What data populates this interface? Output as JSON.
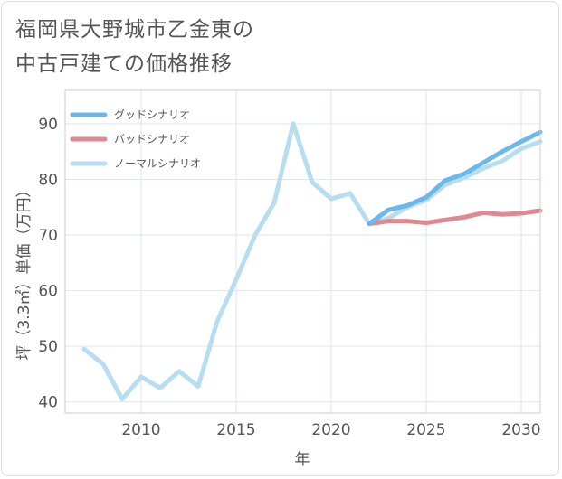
{
  "chart_data": {
    "type": "line",
    "title_lines": [
      "福岡県大野城市乙金東の",
      "中古戸建ての価格推移"
    ],
    "xlabel": "年",
    "ylabel": "坪（3.3㎡）単価（万円）",
    "xlim": [
      2006,
      2031
    ],
    "ylim": [
      38,
      96
    ],
    "xticks": [
      2010,
      2015,
      2020,
      2025,
      2030
    ],
    "yticks": [
      40,
      50,
      60,
      70,
      80,
      90
    ],
    "grid": true,
    "legend_position": "top-left",
    "series": [
      {
        "name": "グッドシナリオ",
        "color": "#6bb8ec",
        "x": [
          2022,
          2023,
          2024,
          2025,
          2026,
          2027,
          2028,
          2029,
          2030,
          2031
        ],
        "values": [
          72.0,
          74.5,
          75.3,
          76.8,
          79.8,
          81.0,
          83.0,
          85.0,
          86.8,
          88.5
        ]
      },
      {
        "name": "バッドシナリオ",
        "color": "#de8a92",
        "x": [
          2022,
          2023,
          2024,
          2025,
          2026,
          2027,
          2028,
          2029,
          2030,
          2031
        ],
        "values": [
          72.0,
          72.5,
          72.5,
          72.2,
          72.7,
          73.2,
          74.0,
          73.7,
          73.9,
          74.4
        ]
      },
      {
        "name": "ノーマルシナリオ",
        "color": "#b7ddf0",
        "x": [
          2007,
          2008,
          2009,
          2010,
          2011,
          2012,
          2013,
          2014,
          2015,
          2016,
          2017,
          2018,
          2019,
          2020,
          2021,
          2022,
          2023,
          2024,
          2025,
          2026,
          2027,
          2028,
          2029,
          2030,
          2031
        ],
        "values": [
          49.5,
          46.8,
          40.5,
          44.5,
          42.5,
          45.5,
          42.8,
          54.5,
          62.0,
          70.0,
          75.8,
          90.0,
          79.5,
          76.5,
          77.5,
          72.0,
          73.0,
          75.0,
          76.3,
          79.0,
          80.3,
          82.0,
          83.3,
          85.5,
          86.8
        ]
      }
    ]
  }
}
